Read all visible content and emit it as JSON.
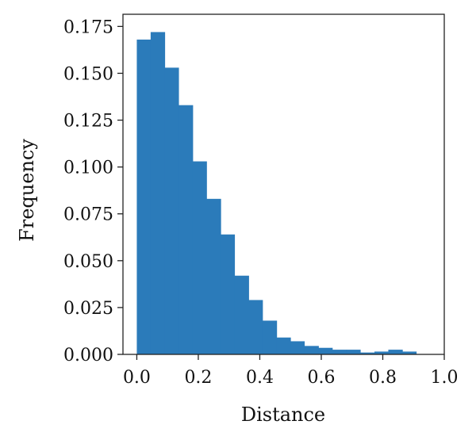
{
  "chart_data": {
    "type": "bar",
    "histogram": true,
    "xlabel": "Distance",
    "ylabel": "Frequency",
    "xlim": [
      0,
      1.0
    ],
    "ylim": [
      0,
      0.18
    ],
    "xticks": [
      0.0,
      0.2,
      0.4,
      0.6,
      0.8,
      1.0
    ],
    "xtick_labels": [
      "0.0",
      "0.2",
      "0.4",
      "0.6",
      "0.8",
      "1.0"
    ],
    "yticks": [
      0.0,
      0.025,
      0.05,
      0.075,
      0.1,
      0.125,
      0.15,
      0.175
    ],
    "ytick_labels": [
      "0.000",
      "0.025",
      "0.050",
      "0.075",
      "0.100",
      "0.125",
      "0.150",
      "0.175"
    ],
    "grid": false,
    "legend": "none",
    "bar_color": "#2b7bba",
    "bins": [
      {
        "x0": 0.0,
        "x1": 0.045,
        "value": 0.168
      },
      {
        "x0": 0.045,
        "x1": 0.091,
        "value": 0.172
      },
      {
        "x0": 0.091,
        "x1": 0.136,
        "value": 0.153
      },
      {
        "x0": 0.136,
        "x1": 0.182,
        "value": 0.133
      },
      {
        "x0": 0.182,
        "x1": 0.227,
        "value": 0.103
      },
      {
        "x0": 0.227,
        "x1": 0.273,
        "value": 0.083
      },
      {
        "x0": 0.273,
        "x1": 0.318,
        "value": 0.064
      },
      {
        "x0": 0.318,
        "x1": 0.364,
        "value": 0.042
      },
      {
        "x0": 0.364,
        "x1": 0.409,
        "value": 0.029
      },
      {
        "x0": 0.409,
        "x1": 0.455,
        "value": 0.018
      },
      {
        "x0": 0.455,
        "x1": 0.5,
        "value": 0.009
      },
      {
        "x0": 0.5,
        "x1": 0.545,
        "value": 0.007
      },
      {
        "x0": 0.545,
        "x1": 0.591,
        "value": 0.0045
      },
      {
        "x0": 0.591,
        "x1": 0.636,
        "value": 0.0035
      },
      {
        "x0": 0.636,
        "x1": 0.682,
        "value": 0.0025
      },
      {
        "x0": 0.682,
        "x1": 0.727,
        "value": 0.0025
      },
      {
        "x0": 0.727,
        "x1": 0.773,
        "value": 0.001
      },
      {
        "x0": 0.773,
        "x1": 0.818,
        "value": 0.0015
      },
      {
        "x0": 0.818,
        "x1": 0.864,
        "value": 0.0025
      },
      {
        "x0": 0.864,
        "x1": 0.909,
        "value": 0.0015
      }
    ]
  }
}
